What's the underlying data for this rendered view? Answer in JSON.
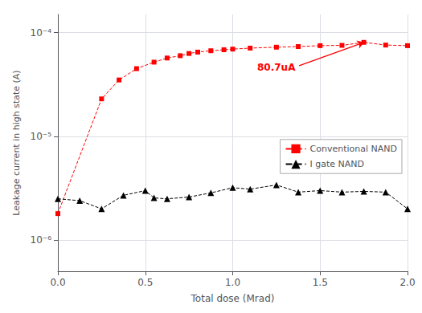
{
  "chart_data": {
    "type": "line",
    "log": "y",
    "xlabel": "Total dose (Mrad)",
    "ylabel": "Leakage current in high state (A)",
    "xlim": [
      0.0,
      2.0
    ],
    "xticks": [
      {
        "value": 0.0,
        "label": "0.0"
      },
      {
        "value": 0.5,
        "label": "0.5"
      },
      {
        "value": 1.0,
        "label": "1.0"
      },
      {
        "value": 1.5,
        "label": "1.5"
      },
      {
        "value": 2.0,
        "label": "2.0"
      }
    ],
    "ylim": [
      5e-07,
      0.00015
    ],
    "yticks": [
      {
        "value": 1e-06,
        "label": "10⁻⁶"
      },
      {
        "value": 1e-05,
        "label": "10⁻⁵"
      },
      {
        "value": 0.0001,
        "label": "10⁻⁴"
      }
    ],
    "grid": true,
    "legend": "right",
    "series": [
      {
        "name": "Conventional NAND",
        "color": "#FF0000",
        "marker": "square",
        "line_style": "dashed",
        "x": [
          0.0,
          0.25,
          0.35,
          0.45,
          0.55,
          0.625,
          0.7,
          0.75,
          0.8,
          0.875,
          0.95,
          1.0,
          1.1,
          1.25,
          1.375,
          1.5,
          1.625,
          1.75,
          1.875,
          2.0
        ],
        "values": [
          1.8e-06,
          2.3e-05,
          3.5e-05,
          4.5e-05,
          5.2e-05,
          5.7e-05,
          6e-05,
          6.3e-05,
          6.5e-05,
          6.7e-05,
          6.85e-05,
          6.95e-05,
          7.1e-05,
          7.25e-05,
          7.35e-05,
          7.5e-05,
          7.55e-05,
          8.07e-05,
          7.6e-05,
          7.5e-05
        ]
      },
      {
        "name": "I gate NAND",
        "color": "#000000",
        "marker": "triangle",
        "line_style": "dashed",
        "x": [
          0.0,
          0.125,
          0.25,
          0.375,
          0.5,
          0.55,
          0.625,
          0.75,
          0.875,
          1.0,
          1.1,
          1.25,
          1.375,
          1.5,
          1.625,
          1.75,
          1.875,
          2.0
        ],
        "values": [
          2.5e-06,
          2.4e-06,
          2e-06,
          2.7e-06,
          3e-06,
          2.55e-06,
          2.5e-06,
          2.6e-06,
          2.85e-06,
          3.2e-06,
          3.1e-06,
          3.4e-06,
          2.9e-06,
          3e-06,
          2.9e-06,
          2.95e-06,
          2.9e-06,
          2e-06
        ]
      }
    ],
    "annotations": [
      {
        "text": "80.7uA",
        "x": 1.75,
        "y": 8.07e-05,
        "text_x": 1.38,
        "text_y": 4.8e-05,
        "color": "#FF0000"
      }
    ]
  }
}
